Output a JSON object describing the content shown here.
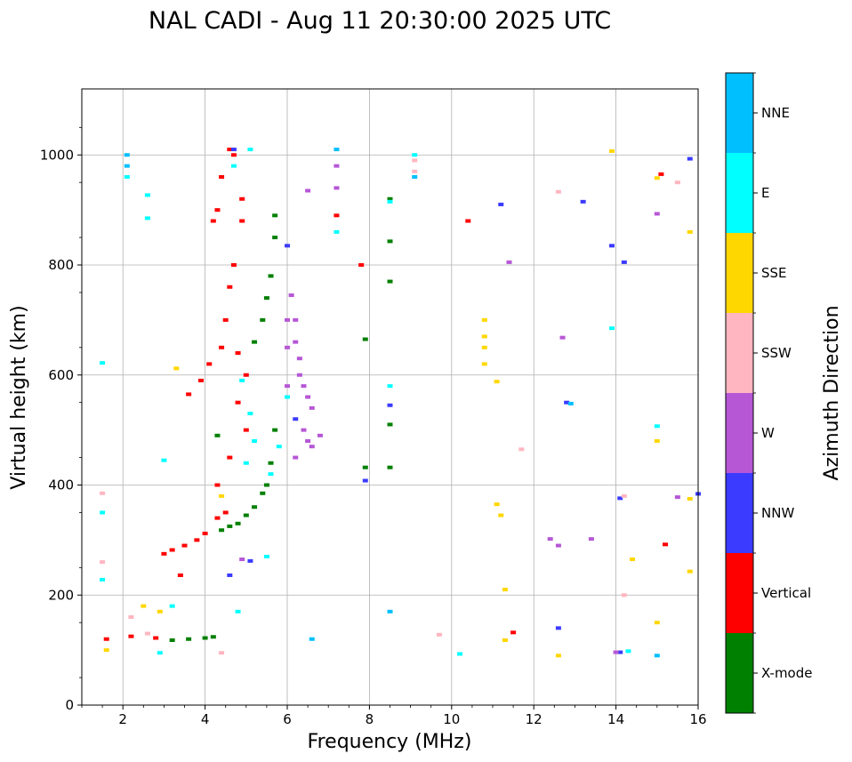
{
  "chart_data": {
    "type": "scatter",
    "title": "NAL CADI - Aug 11 20:30:00 2025 UTC",
    "xlabel": "Frequency (MHz)",
    "ylabel": "Virtual height (km)",
    "xlim": [
      1,
      16
    ],
    "ylim": [
      0,
      1120
    ],
    "xticks": [
      "2",
      "4",
      "6",
      "8",
      "10",
      "12",
      "14",
      "16"
    ],
    "yticks": [
      "0",
      "200",
      "400",
      "600",
      "800",
      "1000"
    ],
    "grid": true,
    "colorbar": {
      "label": "Azimuth Direction",
      "categories": [
        {
          "name": "X-mode",
          "color": "#008000"
        },
        {
          "name": "Vertical",
          "color": "#ff0000"
        },
        {
          "name": "NNW",
          "color": "#3b3bff"
        },
        {
          "name": "W",
          "color": "#b657d6"
        },
        {
          "name": "SSW",
          "color": "#ffb6c1"
        },
        {
          "name": "SSE",
          "color": "#ffd700"
        },
        {
          "name": "E",
          "color": "#00ffff"
        },
        {
          "name": "NNE",
          "color": "#00bfff"
        }
      ]
    },
    "series": [
      {
        "name": "X-mode",
        "points": [
          [
            3.2,
            118
          ],
          [
            3.6,
            120
          ],
          [
            4.0,
            122
          ],
          [
            4.2,
            124
          ],
          [
            4.4,
            318
          ],
          [
            4.6,
            325
          ],
          [
            4.8,
            330
          ],
          [
            5.0,
            345
          ],
          [
            5.2,
            360
          ],
          [
            5.4,
            385
          ],
          [
            5.5,
            400
          ],
          [
            5.6,
            440
          ],
          [
            5.7,
            500
          ],
          [
            5.4,
            700
          ],
          [
            5.5,
            740
          ],
          [
            5.6,
            780
          ],
          [
            5.2,
            660
          ],
          [
            5.7,
            890
          ],
          [
            5.7,
            850
          ],
          [
            4.3,
            490
          ],
          [
            8.5,
            920
          ],
          [
            8.5,
            843
          ],
          [
            8.5,
            770
          ],
          [
            8.5,
            510
          ],
          [
            8.5,
            432
          ],
          [
            7.9,
            665
          ],
          [
            7.9,
            432
          ]
        ]
      },
      {
        "name": "Vertical",
        "points": [
          [
            1.6,
            120
          ],
          [
            2.2,
            125
          ],
          [
            2.8,
            122
          ],
          [
            3.0,
            275
          ],
          [
            3.2,
            282
          ],
          [
            3.4,
            236
          ],
          [
            3.5,
            290
          ],
          [
            3.6,
            565
          ],
          [
            3.8,
            300
          ],
          [
            3.9,
            590
          ],
          [
            4.0,
            312
          ],
          [
            4.1,
            620
          ],
          [
            4.2,
            880
          ],
          [
            4.3,
            900
          ],
          [
            4.3,
            340
          ],
          [
            4.3,
            400
          ],
          [
            4.4,
            650
          ],
          [
            4.5,
            700
          ],
          [
            4.4,
            960
          ],
          [
            4.5,
            350
          ],
          [
            4.6,
            760
          ],
          [
            4.6,
            450
          ],
          [
            4.7,
            800
          ],
          [
            4.7,
            1000
          ],
          [
            4.8,
            550
          ],
          [
            4.8,
            640
          ],
          [
            4.9,
            880
          ],
          [
            4.9,
            920
          ],
          [
            5.0,
            600
          ],
          [
            5.0,
            500
          ],
          [
            4.6,
            1010
          ],
          [
            7.2,
            890
          ],
          [
            7.8,
            800
          ],
          [
            10.4,
            880
          ],
          [
            15.1,
            965
          ],
          [
            15.2,
            292
          ],
          [
            11.5,
            132
          ]
        ]
      },
      {
        "name": "NNW",
        "points": [
          [
            4.7,
            1010
          ],
          [
            5.1,
            262
          ],
          [
            4.6,
            236
          ],
          [
            6.0,
            835
          ],
          [
            6.2,
            520
          ],
          [
            8.5,
            545
          ],
          [
            7.9,
            408
          ],
          [
            11.2,
            910
          ],
          [
            13.2,
            915
          ],
          [
            12.8,
            550
          ],
          [
            13.9,
            835
          ],
          [
            14.2,
            805
          ],
          [
            14.1,
            376
          ],
          [
            12.6,
            140
          ],
          [
            14.1,
            96
          ],
          [
            15.8,
            993
          ],
          [
            16.0,
            384
          ]
        ]
      },
      {
        "name": "W",
        "points": [
          [
            6.1,
            745
          ],
          [
            6.2,
            700
          ],
          [
            6.2,
            660
          ],
          [
            6.3,
            630
          ],
          [
            6.3,
            600
          ],
          [
            6.4,
            580
          ],
          [
            6.5,
            560
          ],
          [
            6.6,
            540
          ],
          [
            6.4,
            500
          ],
          [
            6.5,
            480
          ],
          [
            6.6,
            470
          ],
          [
            6.8,
            490
          ],
          [
            6.2,
            450
          ],
          [
            6.0,
            580
          ],
          [
            6.0,
            650
          ],
          [
            6.5,
            935
          ],
          [
            11.4,
            805
          ],
          [
            12.7,
            668
          ],
          [
            12.6,
            290
          ],
          [
            13.4,
            302
          ],
          [
            12.4,
            302
          ],
          [
            14.0,
            96
          ],
          [
            15.0,
            893
          ],
          [
            15.5,
            378
          ],
          [
            7.2,
            940
          ],
          [
            7.2,
            980
          ],
          [
            4.9,
            265
          ],
          [
            6.0,
            700
          ]
        ]
      },
      {
        "name": "SSW",
        "points": [
          [
            1.5,
            385
          ],
          [
            1.5,
            260
          ],
          [
            2.2,
            160
          ],
          [
            2.6,
            130
          ],
          [
            9.1,
            990
          ],
          [
            9.1,
            970
          ],
          [
            9.7,
            128
          ],
          [
            12.6,
            933
          ],
          [
            14.2,
            200
          ],
          [
            14.2,
            380
          ],
          [
            15.5,
            950
          ],
          [
            11.7,
            465
          ],
          [
            4.4,
            95
          ]
        ]
      },
      {
        "name": "SSE",
        "points": [
          [
            1.6,
            100
          ],
          [
            2.5,
            180
          ],
          [
            2.9,
            170
          ],
          [
            3.3,
            612
          ],
          [
            10.8,
            700
          ],
          [
            10.8,
            670
          ],
          [
            10.8,
            650
          ],
          [
            10.8,
            620
          ],
          [
            11.1,
            588
          ],
          [
            11.2,
            345
          ],
          [
            11.1,
            365
          ],
          [
            11.3,
            210
          ],
          [
            11.3,
            118
          ],
          [
            12.6,
            90
          ],
          [
            13.9,
            1007
          ],
          [
            14.4,
            265
          ],
          [
            15.0,
            958
          ],
          [
            15.0,
            480
          ],
          [
            15.0,
            150
          ],
          [
            15.8,
            860
          ],
          [
            15.8,
            375
          ],
          [
            15.8,
            243
          ],
          [
            4.4,
            380
          ]
        ]
      },
      {
        "name": "E",
        "points": [
          [
            1.5,
            622
          ],
          [
            1.5,
            350
          ],
          [
            1.5,
            228
          ],
          [
            2.1,
            960
          ],
          [
            2.6,
            927
          ],
          [
            2.6,
            885
          ],
          [
            3.0,
            445
          ],
          [
            5.1,
            1010
          ],
          [
            4.7,
            980
          ],
          [
            4.9,
            590
          ],
          [
            5.0,
            440
          ],
          [
            5.1,
            530
          ],
          [
            5.2,
            480
          ],
          [
            5.6,
            420
          ],
          [
            5.8,
            470
          ],
          [
            4.8,
            170
          ],
          [
            5.5,
            270
          ],
          [
            6.0,
            560
          ],
          [
            7.2,
            860
          ],
          [
            8.5,
            580
          ],
          [
            8.5,
            915
          ],
          [
            9.1,
            1000
          ],
          [
            10.2,
            93
          ],
          [
            13.9,
            685
          ],
          [
            14.3,
            98
          ],
          [
            15.0,
            507
          ],
          [
            3.2,
            180
          ],
          [
            2.9,
            95
          ]
        ]
      },
      {
        "name": "NNE",
        "points": [
          [
            2.1,
            1000
          ],
          [
            7.2,
            1010
          ],
          [
            9.1,
            960
          ],
          [
            12.9,
            548
          ],
          [
            15.0,
            90
          ],
          [
            8.5,
            170
          ],
          [
            6.6,
            120
          ],
          [
            2.1,
            980
          ]
        ]
      }
    ]
  }
}
